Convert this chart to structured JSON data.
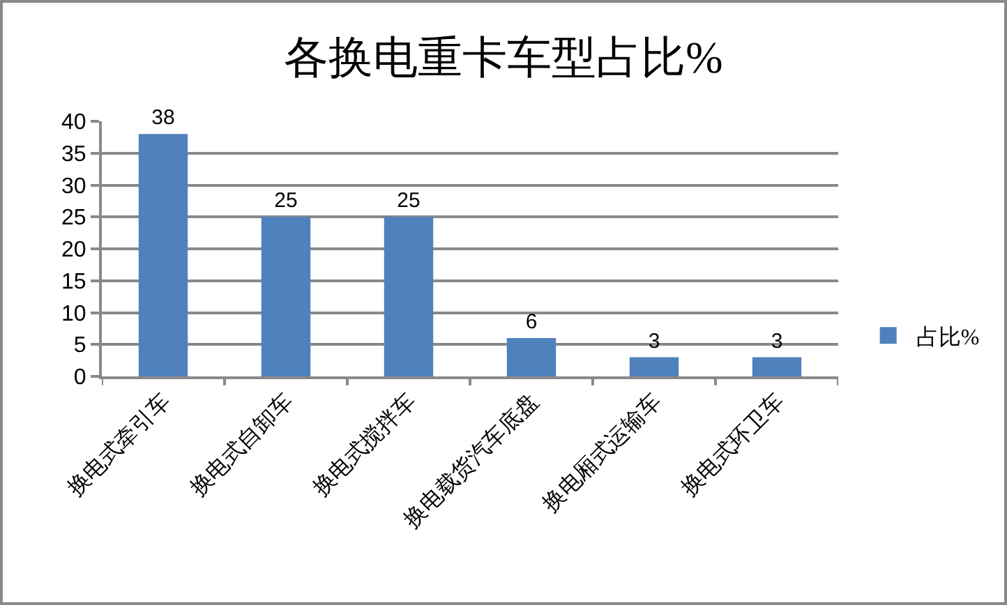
{
  "chart_data": {
    "type": "bar",
    "title": "各换电重卡车型占比%",
    "categories": [
      "换电式牵引车",
      "换电式自卸车",
      "换电式搅拌车",
      "换电载货汽车底盘",
      "换电厢式运输车",
      "换电式环卫车"
    ],
    "series": [
      {
        "name": "占比%",
        "color": "#4f81bd",
        "values": [
          38,
          25,
          25,
          6,
          3,
          3
        ]
      }
    ],
    "ylim": [
      0,
      40
    ],
    "yticks": [
      0,
      5,
      10,
      15,
      20,
      25,
      30,
      35,
      40
    ],
    "grid": "y",
    "legend": "right",
    "data_labels": true
  }
}
